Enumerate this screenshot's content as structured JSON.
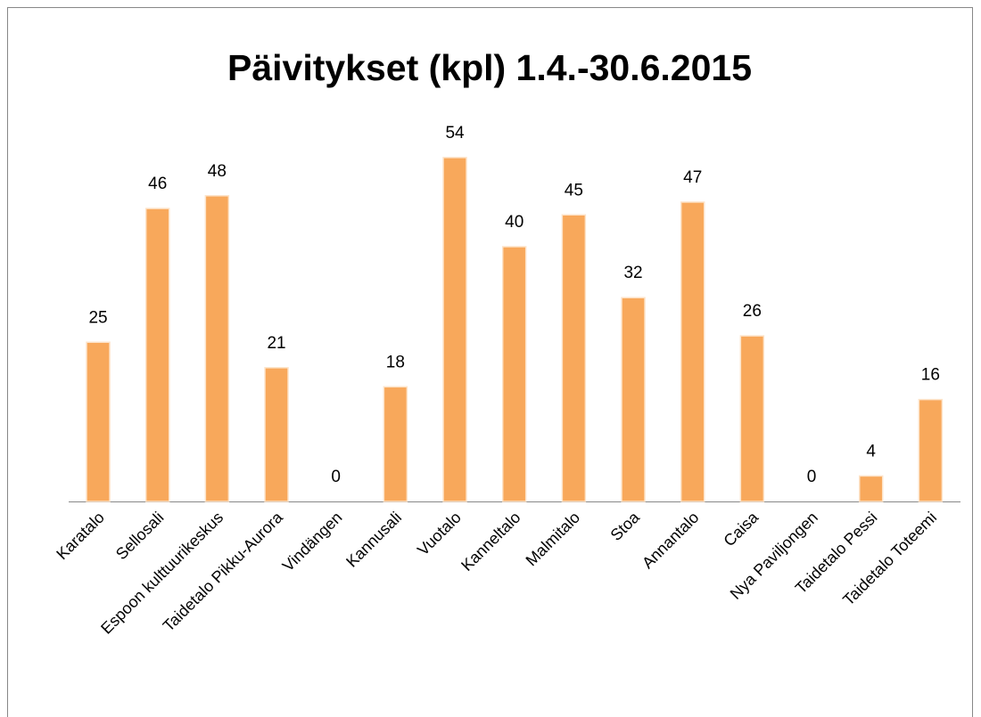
{
  "chart_data": {
    "type": "bar",
    "title": "Päivitykset (kpl) 1.4.-30.6.2015",
    "categories": [
      "Karatalo",
      "Sellosali",
      "Espoon kulttuurikeskus",
      "Taidetalo Pikku-Aurora",
      "Vindängen",
      "Kannusali",
      "Vuotalo",
      "Kanneltalo",
      "Malmitalo",
      "Stoa",
      "Annantalo",
      "Caisa",
      "Nya Paviljongen",
      "Taidetalo Pessi",
      "Taidetalo Toteemi"
    ],
    "values": [
      25,
      46,
      48,
      21,
      0,
      18,
      54,
      40,
      45,
      32,
      47,
      26,
      0,
      4,
      16
    ],
    "color": "#f8a85b"
  }
}
